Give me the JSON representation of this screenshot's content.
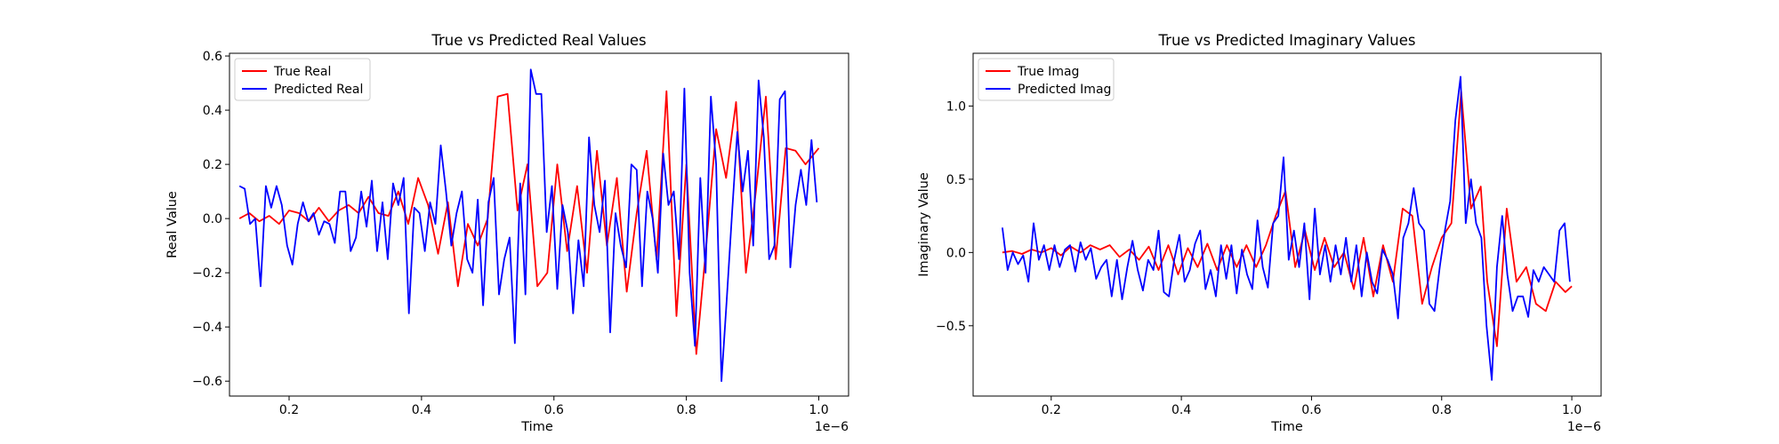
{
  "chart_data": [
    {
      "type": "line",
      "title": "True vs Predicted Real Values",
      "xlabel": "Time",
      "ylabel": "Real Value",
      "x_offset_label": "1e−6",
      "xlim": [
        0.11,
        1.045
      ],
      "ylim": [
        -0.655,
        0.61
      ],
      "xticks": [
        0.2,
        0.4,
        0.6,
        0.8,
        1.0
      ],
      "xtick_labels": [
        "0.2",
        "0.4",
        "0.6",
        "0.8",
        "1.0"
      ],
      "yticks": [
        -0.6,
        -0.4,
        -0.2,
        0.0,
        0.2,
        0.4,
        0.6
      ],
      "ytick_labels": [
        "−0.6",
        "−0.4",
        "−0.2",
        "0.0",
        "0.2",
        "0.4",
        "0.6"
      ],
      "grid": false,
      "legend": "upper-left",
      "series": [
        {
          "name": "True Real",
          "color": "#ff0000",
          "x": [
            0.125,
            0.14,
            0.155,
            0.17,
            0.185,
            0.2,
            0.215,
            0.23,
            0.245,
            0.26,
            0.275,
            0.29,
            0.305,
            0.32,
            0.335,
            0.35,
            0.365,
            0.38,
            0.395,
            0.41,
            0.425,
            0.44,
            0.455,
            0.47,
            0.485,
            0.5,
            0.515,
            0.53,
            0.545,
            0.56,
            0.575,
            0.59,
            0.605,
            0.62,
            0.635,
            0.65,
            0.665,
            0.68,
            0.695,
            0.71,
            0.725,
            0.74,
            0.755,
            0.77,
            0.785,
            0.8,
            0.815,
            0.83,
            0.845,
            0.86,
            0.875,
            0.89,
            0.905,
            0.92,
            0.935,
            0.95,
            0.965,
            0.98,
            1.0
          ],
          "y": [
            0.0,
            0.02,
            -0.01,
            0.01,
            -0.02,
            0.03,
            0.02,
            -0.01,
            0.04,
            -0.01,
            0.03,
            0.05,
            0.02,
            0.08,
            0.02,
            0.01,
            0.1,
            -0.02,
            0.15,
            0.05,
            -0.13,
            0.06,
            -0.25,
            -0.02,
            -0.1,
            0.0,
            0.45,
            0.46,
            0.03,
            0.2,
            -0.25,
            -0.2,
            0.2,
            -0.12,
            0.12,
            -0.2,
            0.25,
            -0.1,
            0.15,
            -0.27,
            0.02,
            0.25,
            -0.15,
            0.47,
            -0.36,
            0.2,
            -0.5,
            -0.1,
            0.33,
            0.15,
            0.43,
            -0.2,
            0.1,
            0.45,
            -0.15,
            0.26,
            0.25,
            0.2,
            0.26
          ]
        },
        {
          "name": "Predicted Real",
          "color": "#0000ff",
          "x": [
            0.125,
            0.133,
            0.141,
            0.149,
            0.157,
            0.165,
            0.173,
            0.181,
            0.189,
            0.197,
            0.205,
            0.213,
            0.221,
            0.229,
            0.237,
            0.245,
            0.253,
            0.261,
            0.269,
            0.277,
            0.285,
            0.293,
            0.301,
            0.309,
            0.317,
            0.325,
            0.333,
            0.341,
            0.349,
            0.357,
            0.365,
            0.373,
            0.381,
            0.389,
            0.397,
            0.405,
            0.413,
            0.421,
            0.429,
            0.437,
            0.445,
            0.453,
            0.461,
            0.469,
            0.477,
            0.485,
            0.493,
            0.501,
            0.509,
            0.517,
            0.525,
            0.533,
            0.541,
            0.549,
            0.557,
            0.565,
            0.573,
            0.581,
            0.589,
            0.597,
            0.605,
            0.613,
            0.621,
            0.629,
            0.637,
            0.645,
            0.653,
            0.661,
            0.669,
            0.677,
            0.685,
            0.693,
            0.701,
            0.709,
            0.717,
            0.725,
            0.733,
            0.741,
            0.749,
            0.757,
            0.765,
            0.773,
            0.781,
            0.789,
            0.797,
            0.805,
            0.813,
            0.821,
            0.829,
            0.837,
            0.845,
            0.853,
            0.861,
            0.869,
            0.877,
            0.885,
            0.893,
            0.901,
            0.909,
            0.917,
            0.925,
            0.933,
            0.941,
            0.949,
            0.957,
            0.965,
            0.973,
            0.981,
            0.989,
            0.997
          ],
          "y": [
            0.12,
            0.11,
            -0.02,
            0.0,
            -0.25,
            0.12,
            0.04,
            0.12,
            0.05,
            -0.1,
            -0.17,
            -0.02,
            0.06,
            -0.01,
            0.02,
            -0.06,
            -0.01,
            -0.02,
            -0.09,
            0.1,
            0.1,
            -0.12,
            -0.07,
            0.1,
            -0.03,
            0.14,
            -0.12,
            0.06,
            -0.15,
            0.13,
            0.05,
            0.15,
            -0.35,
            0.04,
            0.02,
            -0.12,
            0.06,
            -0.02,
            0.27,
            0.1,
            -0.1,
            0.02,
            0.1,
            -0.15,
            -0.2,
            0.07,
            -0.32,
            0.06,
            0.15,
            -0.28,
            -0.15,
            -0.07,
            -0.46,
            0.13,
            -0.28,
            0.55,
            0.46,
            0.46,
            -0.05,
            0.12,
            -0.26,
            0.05,
            -0.05,
            -0.35,
            -0.08,
            -0.25,
            0.3,
            0.05,
            -0.05,
            0.14,
            -0.42,
            0.02,
            -0.1,
            -0.18,
            0.2,
            0.18,
            -0.25,
            0.1,
            0.0,
            -0.2,
            0.24,
            0.05,
            0.1,
            -0.15,
            0.48,
            -0.2,
            -0.47,
            0.15,
            -0.2,
            0.45,
            0.2,
            -0.6,
            -0.3,
            0.02,
            0.32,
            0.1,
            0.25,
            -0.1,
            0.51,
            0.3,
            -0.15,
            -0.1,
            0.44,
            0.47,
            -0.18,
            0.05,
            0.18,
            0.05,
            0.29,
            0.06
          ]
        }
      ]
    },
    {
      "type": "line",
      "title": "True vs Predicted Imaginary Values",
      "xlabel": "Time",
      "ylabel": "Imaginary Value",
      "x_offset_label": "1e−6",
      "xlim": [
        0.08,
        1.045
      ],
      "ylim": [
        -0.98,
        1.36
      ],
      "xticks": [
        0.2,
        0.4,
        0.6,
        0.8,
        1.0
      ],
      "xtick_labels": [
        "0.2",
        "0.4",
        "0.6",
        "0.8",
        "1.0"
      ],
      "yticks": [
        -0.5,
        0.0,
        0.5,
        1.0
      ],
      "ytick_labels": [
        "−0.5",
        "0.0",
        "0.5",
        "1.0"
      ],
      "grid": false,
      "legend": "upper-left",
      "series": [
        {
          "name": "True Imag",
          "color": "#ff0000",
          "x": [
            0.125,
            0.14,
            0.155,
            0.17,
            0.185,
            0.2,
            0.215,
            0.23,
            0.245,
            0.26,
            0.275,
            0.29,
            0.305,
            0.32,
            0.335,
            0.35,
            0.365,
            0.38,
            0.395,
            0.41,
            0.425,
            0.44,
            0.455,
            0.47,
            0.485,
            0.5,
            0.515,
            0.53,
            0.545,
            0.56,
            0.575,
            0.59,
            0.605,
            0.62,
            0.635,
            0.65,
            0.665,
            0.68,
            0.695,
            0.71,
            0.725,
            0.74,
            0.755,
            0.77,
            0.785,
            0.8,
            0.815,
            0.83,
            0.845,
            0.86,
            0.87,
            0.885,
            0.9,
            0.915,
            0.93,
            0.945,
            0.96,
            0.975,
            0.99,
            1.0
          ],
          "y": [
            0.0,
            0.01,
            -0.01,
            0.02,
            0.0,
            0.03,
            -0.02,
            0.04,
            0.0,
            0.05,
            0.02,
            0.05,
            -0.03,
            0.02,
            -0.05,
            0.04,
            -0.12,
            0.05,
            -0.15,
            0.03,
            -0.1,
            0.06,
            -0.12,
            0.05,
            -0.1,
            0.05,
            -0.1,
            0.05,
            0.25,
            0.42,
            -0.1,
            0.15,
            -0.12,
            0.1,
            -0.1,
            0.0,
            -0.25,
            0.1,
            -0.3,
            0.05,
            -0.2,
            0.3,
            0.25,
            -0.35,
            -0.1,
            0.1,
            0.2,
            1.1,
            0.3,
            0.45,
            -0.2,
            -0.64,
            0.3,
            -0.2,
            -0.1,
            -0.35,
            -0.4,
            -0.2,
            -0.27,
            -0.23
          ]
        },
        {
          "name": "Predicted Imag",
          "color": "#0000ff",
          "x": [
            0.125,
            0.133,
            0.141,
            0.149,
            0.157,
            0.165,
            0.173,
            0.181,
            0.189,
            0.197,
            0.205,
            0.213,
            0.221,
            0.229,
            0.237,
            0.245,
            0.253,
            0.261,
            0.269,
            0.277,
            0.285,
            0.293,
            0.301,
            0.309,
            0.317,
            0.325,
            0.333,
            0.341,
            0.349,
            0.357,
            0.365,
            0.373,
            0.381,
            0.389,
            0.397,
            0.405,
            0.413,
            0.421,
            0.429,
            0.437,
            0.445,
            0.453,
            0.461,
            0.469,
            0.477,
            0.485,
            0.493,
            0.501,
            0.509,
            0.517,
            0.525,
            0.533,
            0.541,
            0.549,
            0.557,
            0.565,
            0.573,
            0.581,
            0.589,
            0.597,
            0.605,
            0.613,
            0.621,
            0.629,
            0.637,
            0.645,
            0.653,
            0.661,
            0.669,
            0.677,
            0.685,
            0.693,
            0.701,
            0.709,
            0.717,
            0.725,
            0.733,
            0.741,
            0.749,
            0.757,
            0.765,
            0.773,
            0.781,
            0.789,
            0.797,
            0.805,
            0.813,
            0.821,
            0.829,
            0.837,
            0.845,
            0.853,
            0.861,
            0.869,
            0.877,
            0.885,
            0.893,
            0.901,
            0.909,
            0.917,
            0.925,
            0.933,
            0.941,
            0.949,
            0.957,
            0.965,
            0.973,
            0.981,
            0.989,
            0.997
          ],
          "y": [
            0.17,
            -0.12,
            0.0,
            -0.08,
            -0.02,
            -0.2,
            0.2,
            -0.05,
            0.05,
            -0.12,
            0.05,
            -0.1,
            0.02,
            0.05,
            -0.13,
            0.07,
            -0.05,
            0.03,
            -0.18,
            -0.1,
            -0.05,
            -0.3,
            -0.05,
            -0.32,
            -0.1,
            0.08,
            -0.12,
            -0.26,
            -0.05,
            -0.12,
            0.15,
            -0.27,
            -0.3,
            -0.05,
            0.12,
            -0.2,
            -0.12,
            0.06,
            0.15,
            -0.25,
            -0.12,
            -0.3,
            0.05,
            -0.18,
            0.05,
            -0.28,
            0.02,
            -0.15,
            -0.25,
            0.22,
            -0.1,
            -0.24,
            0.2,
            0.25,
            0.65,
            -0.05,
            0.15,
            -0.1,
            0.2,
            -0.32,
            0.3,
            -0.15,
            0.05,
            -0.2,
            0.05,
            -0.15,
            0.1,
            -0.2,
            0.05,
            -0.3,
            0.0,
            -0.2,
            -0.28,
            0.02,
            -0.05,
            -0.15,
            -0.45,
            0.1,
            0.2,
            0.44,
            0.2,
            0.15,
            -0.35,
            -0.4,
            -0.1,
            0.15,
            0.35,
            0.9,
            1.2,
            0.2,
            0.5,
            0.2,
            0.1,
            -0.5,
            -0.87,
            -0.1,
            0.25,
            -0.15,
            -0.4,
            -0.3,
            -0.3,
            -0.44,
            -0.12,
            -0.2,
            -0.1,
            -0.15,
            -0.2,
            0.15,
            0.2,
            -0.2
          ]
        }
      ]
    }
  ]
}
